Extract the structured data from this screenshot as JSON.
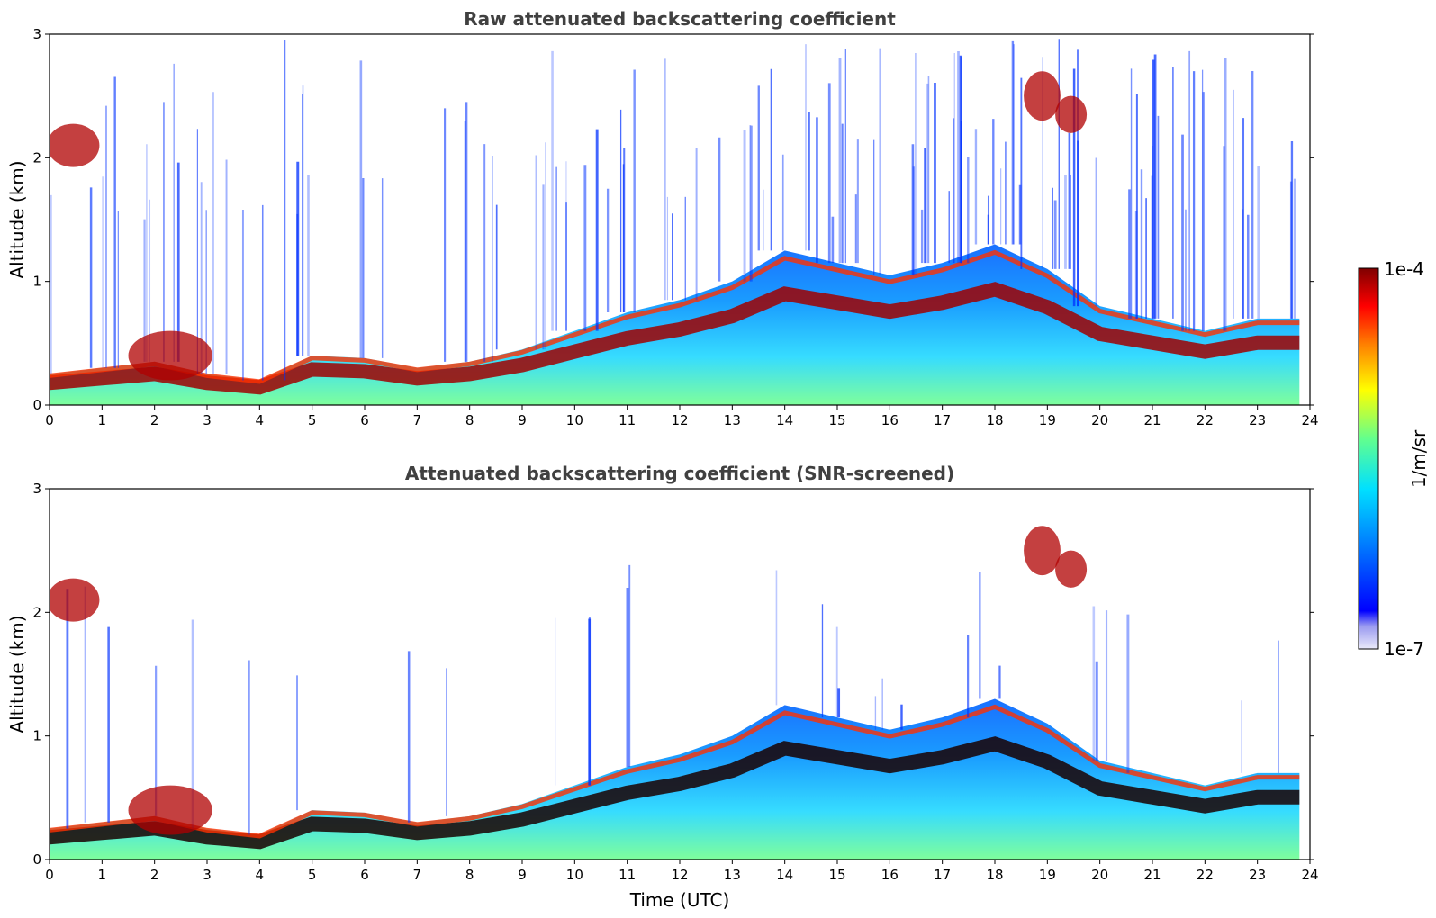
{
  "chart_data": [
    {
      "type": "heatmap",
      "title": "Raw attenuated backscattering coefficient",
      "xlabel": "",
      "ylabel": "Altitude (km)",
      "xlim": [
        0,
        24
      ],
      "ylim": [
        0,
        3
      ],
      "x_ticks": [
        "0",
        "1",
        "2",
        "3",
        "4",
        "5",
        "6",
        "7",
        "8",
        "9",
        "10",
        "11",
        "12",
        "13",
        "14",
        "15",
        "16",
        "17",
        "18",
        "19",
        "20",
        "21",
        "22",
        "23",
        "24"
      ],
      "y_ticks": [
        "0",
        "1",
        "2",
        "3"
      ],
      "screened": false,
      "boundary_layer_top_km": {
        "x": [
          0,
          1,
          2,
          3,
          4,
          5,
          6,
          7,
          8,
          9,
          10,
          11,
          12,
          13,
          14,
          15,
          16,
          17,
          18,
          19,
          20,
          21,
          22,
          23,
          23.8
        ],
        "y": [
          0.25,
          0.3,
          0.35,
          0.25,
          0.2,
          0.4,
          0.38,
          0.3,
          0.35,
          0.45,
          0.6,
          0.75,
          0.85,
          1.0,
          1.25,
          1.15,
          1.05,
          1.15,
          1.3,
          1.1,
          0.8,
          0.7,
          0.6,
          0.7,
          0.7
        ]
      }
    },
    {
      "type": "heatmap",
      "title": "Attenuated backscattering coefficient (SNR-screened)",
      "xlabel": "Time (UTC)",
      "ylabel": "Altitude (km)",
      "xlim": [
        0,
        24
      ],
      "ylim": [
        0,
        3
      ],
      "x_ticks": [
        "0",
        "1",
        "2",
        "3",
        "4",
        "5",
        "6",
        "7",
        "8",
        "9",
        "10",
        "11",
        "12",
        "13",
        "14",
        "15",
        "16",
        "17",
        "18",
        "19",
        "20",
        "21",
        "22",
        "23",
        "24"
      ],
      "y_ticks": [
        "0",
        "1",
        "2",
        "3"
      ],
      "screened": true,
      "boundary_layer_top_km": {
        "x": [
          0,
          1,
          2,
          3,
          4,
          5,
          6,
          7,
          8,
          9,
          10,
          11,
          12,
          13,
          14,
          15,
          16,
          17,
          18,
          19,
          20,
          21,
          22,
          23,
          23.8
        ],
        "y": [
          0.25,
          0.3,
          0.35,
          0.25,
          0.2,
          0.4,
          0.38,
          0.3,
          0.35,
          0.45,
          0.6,
          0.75,
          0.85,
          1.0,
          1.25,
          1.15,
          1.05,
          1.15,
          1.3,
          1.1,
          0.8,
          0.7,
          0.6,
          0.7,
          0.7
        ]
      }
    }
  ],
  "colorbar": {
    "label": "1/m/sr",
    "max_label": "1e-4",
    "min_label": "1e-7",
    "colormap": [
      "#e8e8f8",
      "#0000ff",
      "#0080ff",
      "#00ffff",
      "#80ff80",
      "#ffff00",
      "#ff8000",
      "#ff0000",
      "#800000"
    ]
  }
}
